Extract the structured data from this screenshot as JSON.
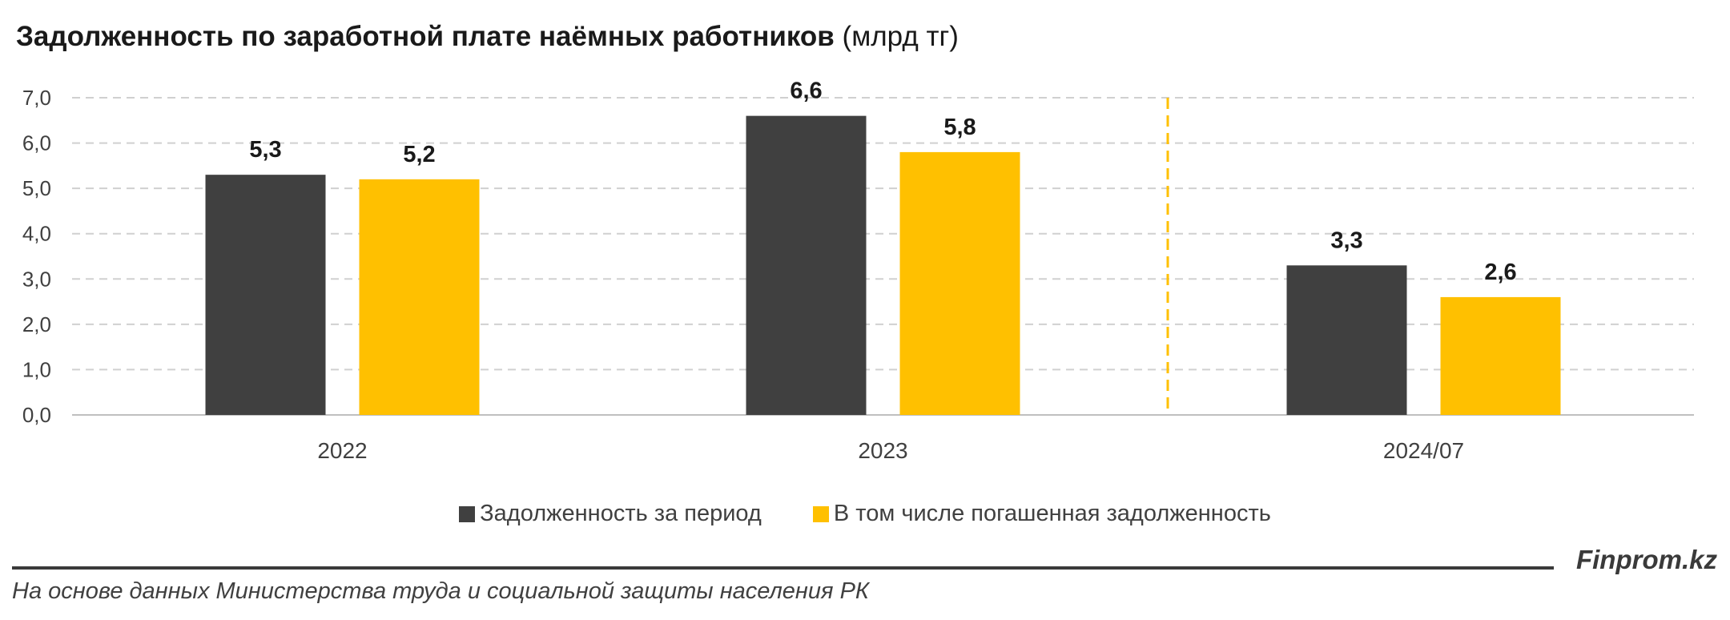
{
  "title": {
    "main": "Задолженность по заработной плате наёмных работников",
    "unit": "(млрд тг)"
  },
  "chart_data": {
    "type": "bar",
    "categories": [
      "2022",
      "2023",
      "2024/07"
    ],
    "series": [
      {
        "name": "Задолженность за период",
        "values": [
          5.3,
          6.6,
          3.3
        ],
        "labels": [
          "5,3",
          "6,6",
          "3,3"
        ],
        "color": "#404040"
      },
      {
        "name": "В том числе погашенная задолженность",
        "values": [
          5.2,
          5.8,
          2.6
        ],
        "labels": [
          "5,2",
          "5,8",
          "2,6"
        ],
        "color": "#FFC000"
      }
    ],
    "ylim": [
      0,
      7
    ],
    "yticks": [
      "0,0",
      "1,0",
      "2,0",
      "3,0",
      "4,0",
      "5,0",
      "6,0",
      "7,0"
    ],
    "grid": true,
    "grid_color": "#d0d0d0",
    "separator_color": "#FFC000",
    "legend_position": "bottom"
  },
  "footer": {
    "brand": "Finprom.kz",
    "source": "На основе данных Министерства труда и социальной защиты населения РК"
  }
}
